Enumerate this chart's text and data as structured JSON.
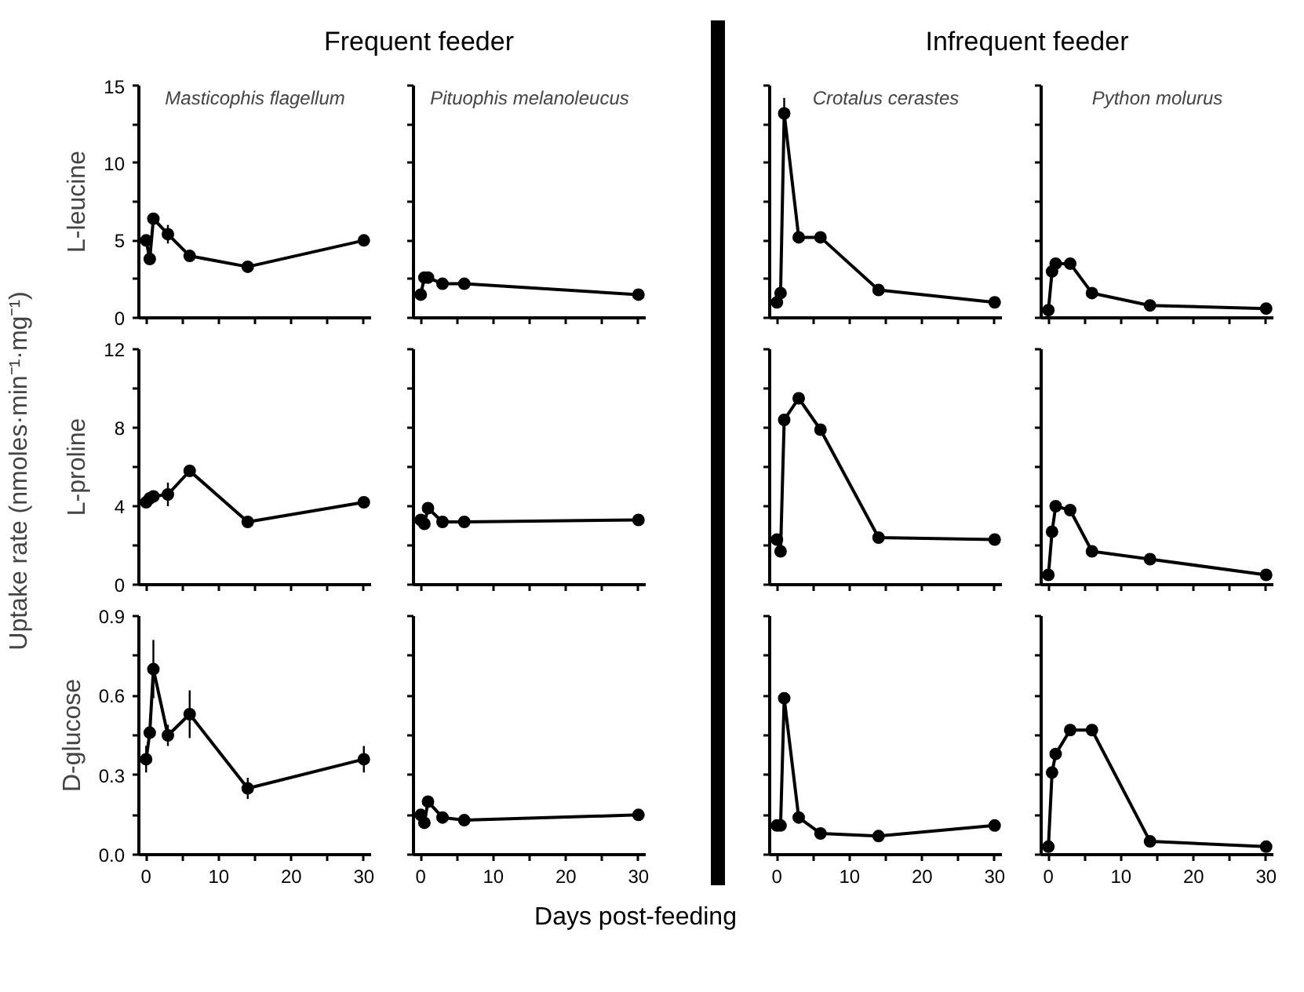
{
  "chart_data": [
    {
      "type": "line",
      "title": "Masticophis flagellum",
      "ylabel": "L-leucine",
      "annotations": [
        "Frequent feeder",
        "Uptake rate (nmoles·min⁻¹·mg⁻¹)",
        "Days post-feeding"
      ],
      "x": [
        0,
        0.5,
        1,
        3,
        6,
        14,
        30
      ],
      "values": [
        5.0,
        3.8,
        6.4,
        5.4,
        4.0,
        3.3,
        5.0
      ],
      "errors": [
        null,
        0.3,
        null,
        0.6,
        0.3,
        null,
        null
      ],
      "color": "#000000",
      "marker": "circle",
      "tick_labels": "y",
      "xlim": [
        -1,
        31
      ],
      "xticks": [
        0,
        {
          "value": 5,
          "label": null
        },
        10,
        {
          "value": 15,
          "label": null
        },
        20,
        {
          "value": 25,
          "label": null
        },
        30
      ],
      "ylim": [
        0,
        15
      ],
      "yticks": [
        0,
        {
          "value": 2.5,
          "label": null
        },
        5,
        {
          "value": 7.5,
          "label": null
        },
        10,
        {
          "value": 12.5,
          "label": null
        },
        15
      ]
    },
    {
      "type": "line",
      "title": "Pituophis melanoleucus",
      "x": [
        0,
        0.5,
        1,
        3,
        6,
        30
      ],
      "values": [
        1.5,
        2.6,
        2.6,
        2.2,
        2.2,
        1.5
      ],
      "color": "#000000",
      "marker": "circle",
      "tick_labels": false,
      "xlim": [
        -1,
        31
      ],
      "xticks": [
        0,
        {
          "value": 5,
          "label": null
        },
        10,
        {
          "value": 15,
          "label": null
        },
        20,
        {
          "value": 25,
          "label": null
        },
        30
      ],
      "ylim": [
        0,
        15
      ],
      "yticks": [
        0,
        {
          "value": 2.5,
          "label": null
        },
        5,
        {
          "value": 7.5,
          "label": null
        },
        10,
        {
          "value": 12.5,
          "label": null
        },
        15
      ]
    },
    {
      "type": "line",
      "title": "Crotalus cerastes",
      "annotations": [
        "Infrequent feeder"
      ],
      "x": [
        0,
        0.5,
        1,
        3,
        6,
        14,
        30
      ],
      "values": [
        1.0,
        1.6,
        13.2,
        5.2,
        5.2,
        1.8,
        1.0
      ],
      "errors": [
        null,
        null,
        1.0,
        null,
        null,
        null,
        null
      ],
      "color": "#000000",
      "marker": "circle",
      "tick_labels": false,
      "xlim": [
        -1,
        31
      ],
      "xticks": [
        0,
        {
          "value": 5,
          "label": null
        },
        10,
        {
          "value": 15,
          "label": null
        },
        20,
        {
          "value": 25,
          "label": null
        },
        30
      ],
      "ylim": [
        0,
        15
      ],
      "yticks": [
        0,
        {
          "value": 2.5,
          "label": null
        },
        5,
        {
          "value": 7.5,
          "label": null
        },
        10,
        {
          "value": 12.5,
          "label": null
        },
        15
      ]
    },
    {
      "type": "line",
      "title": "Python molurus",
      "x": [
        0,
        0.5,
        1,
        3,
        6,
        14,
        30
      ],
      "values": [
        0.5,
        3.0,
        3.5,
        3.5,
        1.6,
        0.8,
        0.6
      ],
      "color": "#000000",
      "marker": "circle",
      "tick_labels": false,
      "xlim": [
        -1,
        31
      ],
      "xticks": [
        0,
        {
          "value": 5,
          "label": null
        },
        10,
        {
          "value": 15,
          "label": null
        },
        20,
        {
          "value": 25,
          "label": null
        },
        30
      ],
      "ylim": [
        0,
        15
      ],
      "yticks": [
        0,
        {
          "value": 2.5,
          "label": null
        },
        5,
        {
          "value": 7.5,
          "label": null
        },
        10,
        {
          "value": 12.5,
          "label": null
        },
        15
      ]
    },
    {
      "type": "line",
      "ylabel": "L-proline",
      "x": [
        0,
        0.5,
        1,
        3,
        6,
        14,
        30
      ],
      "values": [
        4.2,
        4.4,
        4.5,
        4.6,
        5.8,
        3.2,
        4.2
      ],
      "errors": [
        null,
        null,
        null,
        0.6,
        0.2,
        0.2,
        null
      ],
      "color": "#000000",
      "marker": "circle",
      "tick_labels": "y",
      "xlim": [
        -1,
        31
      ],
      "xticks": [
        0,
        {
          "value": 5,
          "label": null
        },
        10,
        {
          "value": 15,
          "label": null
        },
        20,
        {
          "value": 25,
          "label": null
        },
        30
      ],
      "ylim": [
        0,
        12
      ],
      "yticks": [
        0,
        {
          "value": 2,
          "label": null
        },
        4,
        {
          "value": 6,
          "label": null
        },
        8,
        {
          "value": 10,
          "label": null
        },
        12
      ]
    },
    {
      "type": "line",
      "x": [
        0,
        0.5,
        1,
        3,
        6,
        30
      ],
      "values": [
        3.3,
        3.1,
        3.9,
        3.2,
        3.2,
        3.3
      ],
      "color": "#000000",
      "marker": "circle",
      "tick_labels": false,
      "xlim": [
        -1,
        31
      ],
      "xticks": [
        0,
        {
          "value": 5,
          "label": null
        },
        10,
        {
          "value": 15,
          "label": null
        },
        20,
        {
          "value": 25,
          "label": null
        },
        30
      ],
      "ylim": [
        0,
        12
      ],
      "yticks": [
        0,
        {
          "value": 2,
          "label": null
        },
        4,
        {
          "value": 6,
          "label": null
        },
        8,
        {
          "value": 10,
          "label": null
        },
        12
      ]
    },
    {
      "type": "line",
      "x": [
        0,
        0.5,
        1,
        3,
        6,
        14,
        30
      ],
      "values": [
        2.3,
        1.7,
        8.4,
        9.5,
        7.9,
        2.4,
        2.3
      ],
      "color": "#000000",
      "marker": "circle",
      "tick_labels": false,
      "xlim": [
        -1,
        31
      ],
      "xticks": [
        0,
        {
          "value": 5,
          "label": null
        },
        10,
        {
          "value": 15,
          "label": null
        },
        20,
        {
          "value": 25,
          "label": null
        },
        30
      ],
      "ylim": [
        0,
        12
      ],
      "yticks": [
        0,
        {
          "value": 2,
          "label": null
        },
        4,
        {
          "value": 6,
          "label": null
        },
        8,
        {
          "value": 10,
          "label": null
        },
        12
      ]
    },
    {
      "type": "line",
      "x": [
        0,
        0.5,
        1,
        3,
        6,
        14,
        30
      ],
      "values": [
        0.5,
        2.7,
        4.0,
        3.8,
        1.7,
        1.3,
        0.5
      ],
      "color": "#000000",
      "marker": "circle",
      "tick_labels": false,
      "xlim": [
        -1,
        31
      ],
      "xticks": [
        0,
        {
          "value": 5,
          "label": null
        },
        10,
        {
          "value": 15,
          "label": null
        },
        20,
        {
          "value": 25,
          "label": null
        },
        30
      ],
      "ylim": [
        0,
        12
      ],
      "yticks": [
        0,
        {
          "value": 2,
          "label": null
        },
        4,
        {
          "value": 6,
          "label": null
        },
        8,
        {
          "value": 10,
          "label": null
        },
        12
      ]
    },
    {
      "type": "line",
      "ylabel": "D-glucose",
      "x": [
        0,
        0.5,
        1,
        3,
        6,
        14,
        30
      ],
      "values": [
        0.36,
        0.46,
        0.7,
        0.45,
        0.53,
        0.25,
        0.36
      ],
      "errors": [
        0.05,
        null,
        0.11,
        0.04,
        0.09,
        0.04,
        0.05
      ],
      "color": "#000000",
      "marker": "circle",
      "xlim": [
        -1,
        31
      ],
      "xticks": [
        0,
        {
          "value": 5,
          "label": null
        },
        10,
        {
          "value": 15,
          "label": null
        },
        20,
        {
          "value": 25,
          "label": null
        },
        30
      ],
      "ylim": [
        0,
        0.9
      ],
      "yticks": [
        {
          "value": 0,
          "label": "0.0"
        },
        {
          "value": 0.15,
          "label": null
        },
        0.3,
        {
          "value": 0.45,
          "label": null
        },
        0.6,
        {
          "value": 0.75,
          "label": null
        },
        0.9
      ]
    },
    {
      "type": "line",
      "x": [
        0,
        0.5,
        1,
        3,
        6,
        30
      ],
      "values": [
        0.15,
        0.12,
        0.2,
        0.14,
        0.13,
        0.15
      ],
      "color": "#000000",
      "marker": "circle",
      "tick_labels": "x",
      "xlim": [
        -1,
        31
      ],
      "xticks": [
        0,
        {
          "value": 5,
          "label": null
        },
        10,
        {
          "value": 15,
          "label": null
        },
        20,
        {
          "value": 25,
          "label": null
        },
        30
      ],
      "ylim": [
        0,
        0.9
      ],
      "yticks": [
        0,
        {
          "value": 0.15,
          "label": null
        },
        0.3,
        {
          "value": 0.45,
          "label": null
        },
        0.6,
        {
          "value": 0.75,
          "label": null
        },
        0.9
      ]
    },
    {
      "type": "line",
      "x": [
        0,
        0.5,
        1,
        3,
        6,
        14,
        30
      ],
      "values": [
        0.11,
        0.11,
        0.59,
        0.14,
        0.08,
        0.07,
        0.11
      ],
      "color": "#000000",
      "marker": "circle",
      "tick_labels": "x",
      "xlim": [
        -1,
        31
      ],
      "xticks": [
        0,
        {
          "value": 5,
          "label": null
        },
        10,
        {
          "value": 15,
          "label": null
        },
        20,
        {
          "value": 25,
          "label": null
        },
        30
      ],
      "ylim": [
        0,
        0.9
      ],
      "yticks": [
        0,
        {
          "value": 0.15,
          "label": null
        },
        0.3,
        {
          "value": 0.45,
          "label": null
        },
        0.6,
        {
          "value": 0.75,
          "label": null
        },
        0.9
      ]
    },
    {
      "type": "line",
      "x": [
        0,
        0.5,
        1,
        3,
        6,
        14,
        30
      ],
      "values": [
        0.03,
        0.31,
        0.38,
        0.47,
        0.47,
        0.05,
        0.03
      ],
      "color": "#000000",
      "marker": "circle",
      "tick_labels": "x",
      "xlim": [
        -1,
        31
      ],
      "xticks": [
        0,
        {
          "value": 5,
          "label": null
        },
        10,
        {
          "value": 15,
          "label": null
        },
        20,
        {
          "value": 25,
          "label": null
        },
        30
      ],
      "ylim": [
        0,
        0.9
      ],
      "yticks": [
        0,
        {
          "value": 0.15,
          "label": null
        },
        0.3,
        {
          "value": 0.45,
          "label": null
        },
        0.6,
        {
          "value": 0.75,
          "label": null
        },
        0.9
      ]
    }
  ]
}
